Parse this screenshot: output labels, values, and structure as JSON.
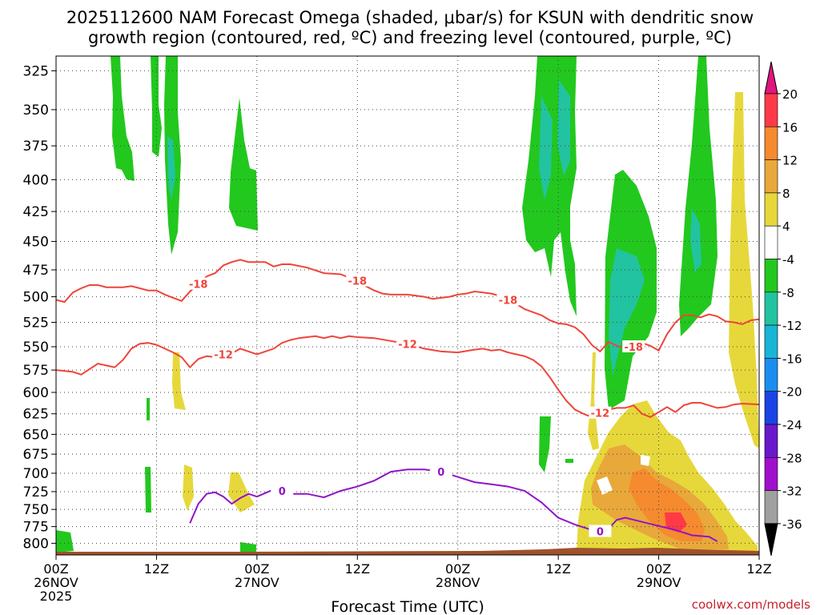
{
  "chart_data": {
    "type": "heatmap",
    "title_line1": "2025112600 NAM Forecast Omega (shaded, μbar/s) for KSUN with dendritic snow",
    "title_line2": "growth region (contoured, red, ºC) and freezing level (contoured, purple, ºC)",
    "xlabel": "Forecast Time (UTC)",
    "credit": "coolwx.com/models",
    "x_range_hours": [
      0,
      84
    ],
    "x_ticks": [
      {
        "hour": 0,
        "label": "00Z",
        "date": "26NOV",
        "year": "2025"
      },
      {
        "hour": 12,
        "label": "12Z",
        "date": "",
        "year": ""
      },
      {
        "hour": 24,
        "label": "00Z",
        "date": "27NOV",
        "year": ""
      },
      {
        "hour": 36,
        "label": "12Z",
        "date": "",
        "year": ""
      },
      {
        "hour": 48,
        "label": "00Z",
        "date": "28NOV",
        "year": ""
      },
      {
        "hour": 60,
        "label": "12Z",
        "date": "",
        "year": ""
      },
      {
        "hour": 72,
        "label": "00Z",
        "date": "29NOV",
        "year": ""
      },
      {
        "hour": 84,
        "label": "12Z",
        "date": "",
        "year": ""
      }
    ],
    "y_axis": "pressure (hPa), log scale",
    "y_range": [
      316,
      818
    ],
    "y_ticks": [
      325,
      350,
      375,
      400,
      425,
      450,
      475,
      500,
      525,
      550,
      575,
      600,
      625,
      650,
      675,
      700,
      725,
      750,
      775,
      800
    ],
    "colorbar": {
      "labels": [
        "20",
        "16",
        "12",
        "8",
        "4",
        "-4",
        "-8",
        "-12",
        "-16",
        "-20",
        "-24",
        "-28",
        "-32",
        "-36"
      ],
      "bins": [
        {
          "range": "16 to 20",
          "color": "#ff3a48"
        },
        {
          "range": "12 to 16",
          "color": "#f58a2f"
        },
        {
          "range": "8 to 12",
          "color": "#e8a83a"
        },
        {
          "range": "4 to 8",
          "color": "#e6d83a"
        },
        {
          "range": "-4 to 4",
          "color": "#ffffff"
        },
        {
          "range": "-8 to -4",
          "color": "#22c81e"
        },
        {
          "range": "-12 to -8",
          "color": "#22c3a0"
        },
        {
          "range": "-16 to -12",
          "color": "#18b5d6"
        },
        {
          "range": "-20 to -16",
          "color": "#1a8ef0"
        },
        {
          "range": "-24 to -20",
          "color": "#1b44e6"
        },
        {
          "range": "-28 to -24",
          "color": "#6a18cc"
        },
        {
          "range": "-32 to -28",
          "color": "#a010cc"
        },
        {
          "range": "-36 to -32",
          "color": "#a0a0a0"
        }
      ],
      "top_arrow_color": "#e0157e",
      "bottom_arrow_color": "#000000"
    },
    "contours": [
      {
        "name": "-18C isotherm",
        "color": "#f0443a",
        "labels": [
          "-18",
          "-18",
          "-18",
          "-18"
        ],
        "points": [
          [
            0,
            503
          ],
          [
            1,
            505
          ],
          [
            2,
            496
          ],
          [
            3,
            492
          ],
          [
            4,
            489
          ],
          [
            5,
            489
          ],
          [
            6,
            491
          ],
          [
            8,
            491
          ],
          [
            9,
            490
          ],
          [
            11,
            494
          ],
          [
            12,
            494
          ],
          [
            13,
            498
          ],
          [
            14,
            501
          ],
          [
            15,
            504
          ],
          [
            16,
            495
          ],
          [
            17,
            488
          ],
          [
            18,
            481
          ],
          [
            19,
            478
          ],
          [
            20,
            471
          ],
          [
            21,
            468
          ],
          [
            22,
            466
          ],
          [
            23,
            468
          ],
          [
            24,
            468
          ],
          [
            25,
            468
          ],
          [
            26,
            472
          ],
          [
            27,
            470
          ],
          [
            28,
            470
          ],
          [
            30,
            473
          ],
          [
            32,
            478
          ],
          [
            34,
            479
          ],
          [
            36,
            485
          ],
          [
            37,
            490
          ],
          [
            38,
            494
          ],
          [
            39,
            497
          ],
          [
            40,
            498
          ],
          [
            42,
            498
          ],
          [
            44,
            500
          ],
          [
            45,
            502
          ],
          [
            46,
            501
          ],
          [
            47,
            500
          ],
          [
            48,
            498
          ],
          [
            49,
            497
          ],
          [
            50,
            495
          ],
          [
            51,
            496
          ],
          [
            52,
            497
          ],
          [
            53,
            499
          ],
          [
            54,
            503
          ],
          [
            55,
            507
          ],
          [
            56,
            512
          ],
          [
            57,
            515
          ],
          [
            58,
            518
          ],
          [
            59,
            523
          ],
          [
            60,
            526
          ],
          [
            61,
            527
          ],
          [
            62,
            530
          ],
          [
            63,
            537
          ],
          [
            64,
            548
          ],
          [
            65,
            555
          ],
          [
            66,
            545
          ],
          [
            67,
            549
          ],
          [
            68,
            551
          ],
          [
            69,
            550
          ],
          [
            70,
            546
          ],
          [
            71,
            549
          ],
          [
            72,
            554
          ],
          [
            73,
            537
          ],
          [
            74,
            525
          ],
          [
            75,
            518
          ],
          [
            76,
            518
          ],
          [
            77,
            520
          ],
          [
            78,
            517
          ],
          [
            79,
            519
          ],
          [
            80,
            524
          ],
          [
            81,
            525
          ],
          [
            82,
            527
          ],
          [
            83,
            523
          ],
          [
            84,
            522
          ]
        ]
      },
      {
        "name": "-12C isotherm",
        "color": "#f0443a",
        "labels": [
          "-12",
          "-12",
          "-12"
        ],
        "points": [
          [
            0,
            575
          ],
          [
            2,
            577
          ],
          [
            3,
            580
          ],
          [
            4,
            574
          ],
          [
            5,
            568
          ],
          [
            6,
            570
          ],
          [
            7,
            572
          ],
          [
            8,
            564
          ],
          [
            9,
            552
          ],
          [
            10,
            547
          ],
          [
            11,
            546
          ],
          [
            12,
            548
          ],
          [
            13,
            552
          ],
          [
            14,
            556
          ],
          [
            15,
            561
          ],
          [
            16,
            572
          ],
          [
            17,
            563
          ],
          [
            18,
            560
          ],
          [
            19,
            561
          ],
          [
            20,
            558
          ],
          [
            21,
            557
          ],
          [
            22,
            552
          ],
          [
            23,
            555
          ],
          [
            24,
            558
          ],
          [
            25,
            555
          ],
          [
            26,
            552
          ],
          [
            27,
            546
          ],
          [
            28,
            543
          ],
          [
            29,
            541
          ],
          [
            30,
            540
          ],
          [
            31,
            539
          ],
          [
            32,
            541
          ],
          [
            33,
            539
          ],
          [
            34,
            541
          ],
          [
            35,
            539
          ],
          [
            36,
            540
          ],
          [
            38,
            541
          ],
          [
            40,
            544
          ],
          [
            42,
            547
          ],
          [
            44,
            552
          ],
          [
            46,
            555
          ],
          [
            48,
            556
          ],
          [
            50,
            553
          ],
          [
            51,
            552
          ],
          [
            52,
            554
          ],
          [
            53,
            553
          ],
          [
            54,
            556
          ],
          [
            55,
            558
          ],
          [
            56,
            560
          ],
          [
            57,
            564
          ],
          [
            58,
            571
          ],
          [
            59,
            583
          ],
          [
            60,
            597
          ],
          [
            61,
            610
          ],
          [
            62,
            620
          ],
          [
            63,
            625
          ],
          [
            64,
            629
          ],
          [
            65,
            624
          ],
          [
            66,
            620
          ],
          [
            67,
            618
          ],
          [
            68,
            618
          ],
          [
            69,
            615
          ],
          [
            70,
            625
          ],
          [
            71,
            629
          ],
          [
            72,
            623
          ],
          [
            73,
            617
          ],
          [
            74,
            623
          ],
          [
            75,
            615
          ],
          [
            76,
            612
          ],
          [
            77,
            612
          ],
          [
            78,
            615
          ],
          [
            79,
            618
          ],
          [
            80,
            617
          ],
          [
            81,
            614
          ],
          [
            82,
            613
          ],
          [
            84,
            614
          ]
        ]
      },
      {
        "name": "0C freezing level",
        "color": "#9014c8",
        "labels": [
          "0",
          "0",
          "0"
        ],
        "points": [
          [
            16,
            770
          ],
          [
            17,
            742
          ],
          [
            18,
            728
          ],
          [
            19,
            726
          ],
          [
            20,
            732
          ],
          [
            21,
            742
          ],
          [
            22,
            734
          ],
          [
            23,
            728
          ],
          [
            24,
            732
          ],
          [
            26,
            722
          ],
          [
            27,
            724
          ],
          [
            28,
            728
          ],
          [
            30,
            728
          ],
          [
            32,
            733
          ],
          [
            34,
            724
          ],
          [
            36,
            718
          ],
          [
            38,
            710
          ],
          [
            40,
            698
          ],
          [
            42,
            695
          ],
          [
            44,
            695
          ],
          [
            46,
            698
          ],
          [
            48,
            705
          ],
          [
            50,
            712
          ],
          [
            52,
            715
          ],
          [
            54,
            718
          ],
          [
            56,
            724
          ],
          [
            58,
            740
          ],
          [
            60,
            762
          ],
          [
            62,
            772
          ],
          [
            64,
            780
          ],
          [
            65,
            782
          ],
          [
            66,
            778
          ],
          [
            67,
            765
          ],
          [
            68,
            762
          ],
          [
            70,
            768
          ],
          [
            72,
            774
          ],
          [
            74,
            780
          ],
          [
            76,
            788
          ],
          [
            78,
            790
          ],
          [
            79,
            797
          ]
        ]
      }
    ],
    "annotations": {
      "contour_label_-18": "-18",
      "contour_label_-12": "-12",
      "contour_label_0": "0"
    }
  }
}
